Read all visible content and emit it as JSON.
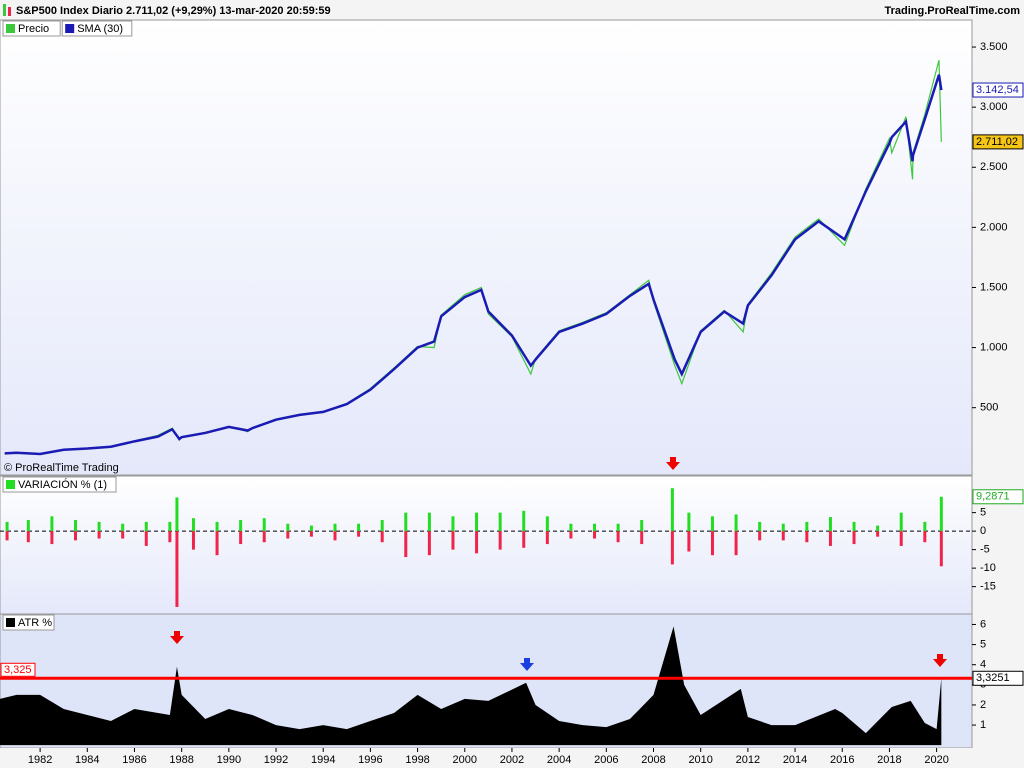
{
  "header": {
    "title": "S&P500 Index Diario 2.711,02 (+9,29%) 13-mar-2020 20:59:59",
    "source": "Trading.ProRealTime.com",
    "copyright": "© ProRealTime Trading"
  },
  "chart_data": [
    {
      "type": "line",
      "xlim": [
        1980.3,
        2021.5
      ],
      "ylim": [
        -60,
        3725
      ],
      "yticks": [
        500,
        {
          "value": 1000,
          "label": "1.000"
        },
        {
          "value": 1500,
          "label": "1.500"
        },
        {
          "value": 2000,
          "label": "2.000"
        },
        {
          "value": 2500,
          "label": "2.500"
        },
        {
          "value": 3000,
          "label": "3.000"
        },
        {
          "value": 3500,
          "label": "3.500"
        }
      ],
      "x": [
        1980.5,
        1981,
        1982,
        1983,
        1984,
        1985,
        1986,
        1987,
        1987.6,
        1987.9,
        1988,
        1989,
        1990,
        1990.8,
        1991,
        1992,
        1993,
        1994,
        1995,
        1996,
        1997,
        1998,
        1998.7,
        1999,
        2000,
        2000.7,
        2001,
        2002,
        2002.8,
        2003,
        2004,
        2005,
        2006,
        2007,
        2007.8,
        2008,
        2008.9,
        2009.2,
        2010,
        2011,
        2011.8,
        2012,
        2013,
        2014,
        2015,
        2016.1,
        2017,
        2018,
        2018.1,
        2018.7,
        2018.98,
        2019,
        2019.5,
        2020.1,
        2020.2
      ],
      "series": [
        {
          "name": "Precio",
          "color": "#3cc83c",
          "width": 1.2,
          "values": [
            118,
            128,
            112,
            152,
            162,
            178,
            224,
            270,
            330,
            230,
            258,
            295,
            345,
            300,
            335,
            405,
            445,
            460,
            535,
            660,
            830,
            1010,
            1000,
            1270,
            1440,
            1500,
            1280,
            1090,
            780,
            910,
            1140,
            1210,
            1290,
            1440,
            1560,
            1380,
            850,
            700,
            1140,
            1310,
            1130,
            1360,
            1620,
            1920,
            2070,
            1850,
            2320,
            2740,
            2620,
            2920,
            2400,
            2620,
            2940,
            3390,
            2711.02
          ]
        },
        {
          "name": "SMA (30)",
          "color": "#1a1ab4",
          "width": 2.5,
          "values": [
            120,
            125,
            115,
            150,
            160,
            175,
            220,
            260,
            320,
            240,
            255,
            290,
            340,
            310,
            330,
            400,
            440,
            465,
            530,
            650,
            820,
            1000,
            1050,
            1260,
            1420,
            1480,
            1300,
            1100,
            850,
            900,
            1130,
            1200,
            1280,
            1430,
            1530,
            1400,
            900,
            780,
            1130,
            1300,
            1200,
            1350,
            1600,
            1900,
            2050,
            1900,
            2300,
            2700,
            2750,
            2880,
            2550,
            2600,
            2900,
            3270,
            3142.54
          ]
        }
      ],
      "markers": [
        {
          "value": 3142.54,
          "label": "3.142,54",
          "color": "#1a1ab4",
          "fill": "#ffffff"
        },
        {
          "value": 2711.02,
          "label": "2.711,02",
          "color": "#000000",
          "fill": "#f5c518"
        }
      ]
    },
    {
      "type": "bar",
      "title": "VARIACIÓN % (1)",
      "xlim": [
        1980.3,
        2021.5
      ],
      "ylim": [
        -22.4,
        14.9
      ],
      "yticks": [
        5,
        0,
        -5,
        -10,
        -15
      ],
      "up_color": "#22dd22",
      "down_color": "#f0244a",
      "x": [
        1980.6,
        1981.5,
        1982.5,
        1983.5,
        1984.5,
        1985.5,
        1986.5,
        1987.5,
        1987.8,
        1988.5,
        1989.5,
        1990.5,
        1991.5,
        1992.5,
        1993.5,
        1994.5,
        1995.5,
        1996.5,
        1997.5,
        1998.5,
        1999.5,
        2000.5,
        2001.5,
        2002.5,
        2003.5,
        2004.5,
        2005.5,
        2006.5,
        2007.5,
        2008.8,
        2009.5,
        2010.5,
        2011.5,
        2012.5,
        2013.5,
        2014.5,
        2015.5,
        2016.5,
        2017.5,
        2018.5,
        2019.5,
        2020.2
      ],
      "up": [
        2.5,
        3,
        4,
        3,
        2.5,
        2,
        2.5,
        2.5,
        9.1,
        3.5,
        2.5,
        3,
        3.5,
        2,
        1.5,
        2,
        2,
        3,
        5,
        5,
        4,
        5,
        5,
        5.5,
        4,
        2,
        2,
        2,
        3,
        11.6,
        5,
        4,
        4.5,
        2.5,
        2,
        2.5,
        3.8,
        2.5,
        1.5,
        5,
        2.5,
        9.2871
      ],
      "down": [
        -2.5,
        -3,
        -3.5,
        -2.5,
        -2,
        -2,
        -4,
        -3,
        -20.5,
        -5,
        -6.5,
        -3.5,
        -3,
        -2,
        -1.5,
        -2.5,
        -1.5,
        -3,
        -7,
        -6.5,
        -5,
        -6,
        -5,
        -4.5,
        -3.5,
        -2,
        -2,
        -3,
        -3.5,
        -9,
        -5.5,
        -6.5,
        -6.5,
        -2.5,
        -2.5,
        -3,
        -4,
        -3.5,
        -1.5,
        -4,
        -3,
        -9.5
      ],
      "markers": [
        {
          "value": 9.2871,
          "label": "9,2871",
          "color": "#22aa22",
          "fill": "#ffffff"
        }
      ]
    },
    {
      "type": "area",
      "title": "ATR %",
      "color": "#000000",
      "xlim": [
        1980.3,
        2021.5
      ],
      "ylim": [
        -0.14,
        6.52
      ],
      "yticks": [
        1,
        2,
        3,
        4,
        5,
        6
      ],
      "xticks": [
        1982,
        1984,
        1986,
        1988,
        1990,
        1992,
        1994,
        1996,
        1998,
        2000,
        2002,
        2004,
        2006,
        2008,
        2010,
        2012,
        2014,
        2016,
        2018,
        2020
      ],
      "x": [
        1980.3,
        1981,
        1982,
        1983,
        1984,
        1985,
        1986,
        1987.5,
        1987.8,
        1988,
        1989,
        1990,
        1991,
        1992,
        1993,
        1994,
        1995,
        1996,
        1997,
        1998,
        1999,
        2000,
        2001,
        2002.6,
        2003,
        2004,
        2005,
        2006,
        2007,
        2008,
        2008.85,
        2009.3,
        2010,
        2011.7,
        2012,
        2013,
        2014,
        2015.7,
        2016,
        2017,
        2018.1,
        2018.9,
        2019.5,
        2020.0,
        2020.2
      ],
      "values": [
        2.3,
        2.5,
        2.5,
        1.8,
        1.5,
        1.2,
        1.8,
        1.5,
        3.9,
        2.5,
        1.3,
        1.8,
        1.5,
        1,
        0.8,
        1,
        0.8,
        1.2,
        1.6,
        2.5,
        1.8,
        2.3,
        2.2,
        3.1,
        2,
        1.2,
        1,
        0.9,
        1.3,
        2.5,
        5.9,
        3,
        1.5,
        2.8,
        1.4,
        1,
        1,
        1.8,
        1.6,
        0.6,
        1.9,
        2.2,
        1.1,
        0.8,
        3.3251
      ],
      "hline": {
        "value": 3.325,
        "label": "3,325",
        "color": "#ff0000"
      },
      "markers": [
        {
          "value": 3.3251,
          "label": "3,3251",
          "color": "#000000",
          "fill": "#ffffff"
        }
      ]
    }
  ]
}
